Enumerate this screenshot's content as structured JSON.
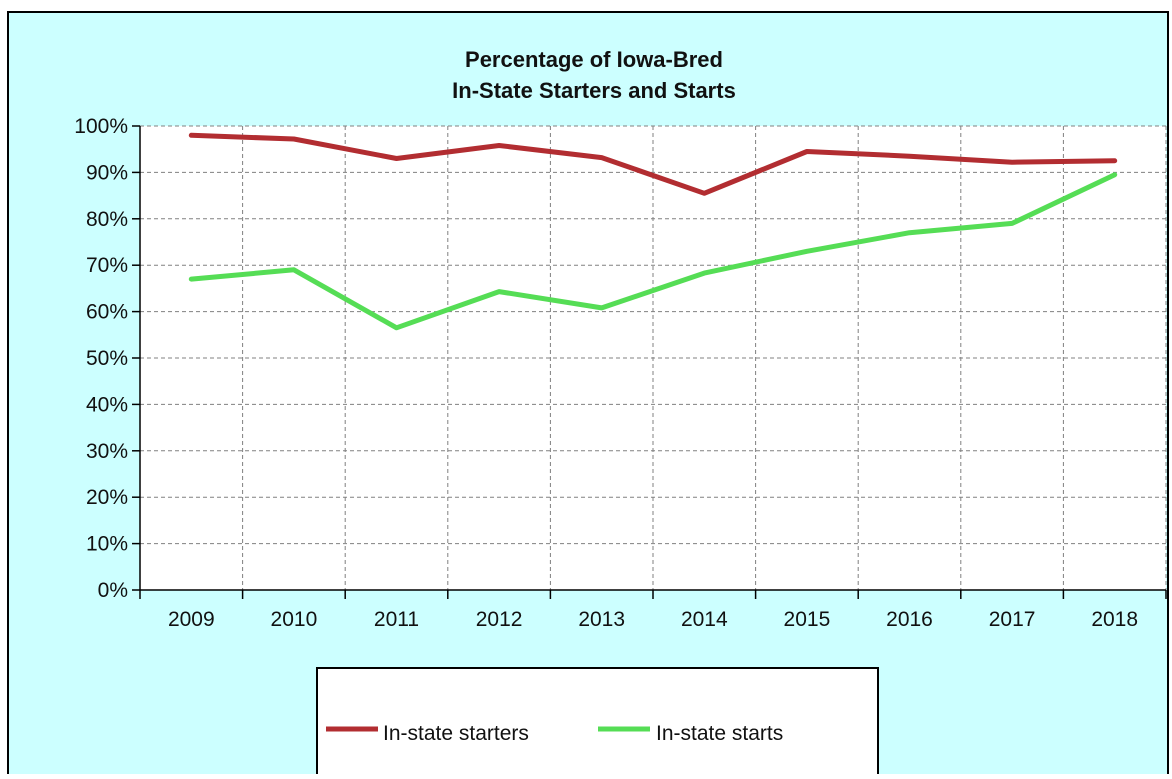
{
  "chart_data": {
    "type": "line",
    "title": [
      "Percentage of Iowa-Bred",
      "In-State Starters and Starts"
    ],
    "xlabel": "",
    "ylabel": "",
    "categories": [
      "2009",
      "2010",
      "2011",
      "2012",
      "2013",
      "2014",
      "2015",
      "2016",
      "2017",
      "2018"
    ],
    "ylim": [
      0,
      100
    ],
    "y_ticks": [
      0,
      10,
      20,
      30,
      40,
      50,
      60,
      70,
      80,
      90,
      100
    ],
    "y_tick_labels": [
      "0%",
      "10%",
      "20%",
      "30%",
      "40%",
      "50%",
      "60%",
      "70%",
      "80%",
      "90%",
      "100%"
    ],
    "grid": true,
    "legend_position": "bottom-center",
    "series": [
      {
        "name": "In-state starters",
        "color": "#b22d31",
        "values": [
          98.0,
          97.2,
          93.0,
          95.8,
          93.2,
          85.5,
          94.5,
          93.5,
          92.2,
          92.5
        ]
      },
      {
        "name": "In-state starts",
        "color": "#55dd55",
        "values": [
          67.0,
          69.0,
          56.5,
          64.3,
          60.8,
          68.3,
          73.0,
          77.0,
          79.0,
          89.5
        ]
      }
    ],
    "colors": {
      "background": "#ccffff",
      "plot_background": "#ffffff",
      "axis": "#000000",
      "grid": "#808080"
    }
  }
}
